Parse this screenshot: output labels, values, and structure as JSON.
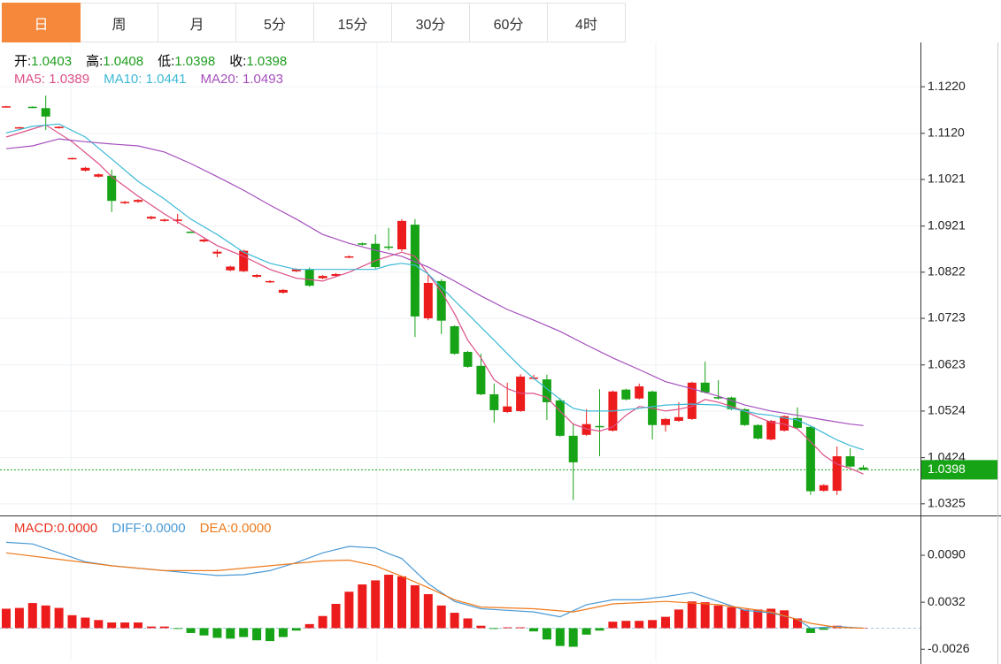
{
  "tabs": [
    "日",
    "周",
    "月",
    "5分",
    "15分",
    "30分",
    "60分",
    "4时"
  ],
  "active_tab": 0,
  "chart_data": [
    {
      "type": "candlestick",
      "info": [
        {
          "label": "开:",
          "value": 1.0403
        },
        {
          "label": "高:",
          "value": 1.0408
        },
        {
          "label": "低:",
          "value": 1.0398
        },
        {
          "label": "收:",
          "value": 1.0398
        }
      ],
      "info_color": "#1e9d1e",
      "ylim": [
        1.03,
        1.1315
      ],
      "yticks": [
        1.0325,
        1.0424,
        1.0524,
        1.0623,
        1.0723,
        1.0822,
        1.0921,
        1.1021,
        {
          "value": 1.112,
          "label": "1.1120"
        },
        {
          "value": 1.122,
          "label": "1.1220"
        }
      ],
      "grid": true,
      "up_color": "#ec1c1c",
      "down_color": "#16a316",
      "candles": {
        "open": [
          1.1177,
          1.1132,
          1.1177,
          1.1174,
          1.1131,
          1.1065,
          1.104,
          1.1027,
          1.1029,
          1.097,
          1.0973,
          1.0937,
          1.0932,
          1.0932,
          1.0909,
          1.0888,
          1.0862,
          1.0826,
          1.0824,
          1.0812,
          1.0801,
          1.0778,
          1.0824,
          1.0828,
          1.0809,
          1.0814,
          1.0854,
          1.0884,
          1.0883,
          1.0877,
          1.0871,
          1.0924,
          1.0723,
          1.0803,
          1.0706,
          1.0651,
          1.0621,
          1.056,
          1.0522,
          1.0524,
          1.0594,
          1.0592,
          1.0547,
          1.0471,
          1.0473,
          1.0492,
          1.0482,
          1.057,
          1.0551,
          1.0566,
          1.0494,
          1.0503,
          1.0507,
          1.0585,
          1.0554,
          1.0553,
          1.0528,
          1.0494,
          1.0463,
          1.0482,
          1.0509,
          1.049,
          1.0353,
          1.0353,
          1.0427,
          1.0403
        ],
        "high": [
          1.1179,
          1.1134,
          1.1178,
          1.1201,
          1.1135,
          1.1068,
          1.1048,
          1.1034,
          1.1042,
          1.0975,
          1.0979,
          1.0943,
          1.0937,
          1.0947,
          1.091,
          1.0894,
          1.0871,
          1.0836,
          1.087,
          1.0818,
          1.0805,
          1.0786,
          1.083,
          1.0832,
          1.0816,
          1.082,
          1.0858,
          1.0886,
          1.0903,
          1.0917,
          1.0936,
          1.0936,
          1.0818,
          1.0807,
          1.0708,
          1.0653,
          1.0647,
          1.0583,
          1.0585,
          1.0603,
          1.0602,
          1.0602,
          1.0552,
          1.0498,
          1.0528,
          1.0571,
          1.0568,
          1.0572,
          1.0583,
          1.0568,
          1.0509,
          1.0543,
          1.0587,
          1.063,
          1.059,
          1.0555,
          1.053,
          1.0496,
          1.0505,
          1.0515,
          1.0532,
          1.0492,
          1.0367,
          1.0448,
          1.0444,
          1.0408
        ],
        "low": [
          1.1176,
          1.1131,
          1.1174,
          1.1127,
          1.113,
          1.1064,
          1.1038,
          1.1025,
          1.0951,
          1.0968,
          1.0971,
          1.0935,
          1.093,
          1.0926,
          1.0906,
          1.0886,
          1.0854,
          1.0824,
          1.0822,
          1.081,
          1.0799,
          1.0776,
          1.0822,
          1.0791,
          1.0807,
          1.0812,
          1.0852,
          1.0879,
          1.083,
          1.0869,
          1.0867,
          1.0683,
          1.0719,
          1.0689,
          1.0645,
          1.0617,
          1.0558,
          1.0499,
          1.052,
          1.0522,
          1.0592,
          1.0505,
          1.0469,
          1.0333,
          1.0471,
          1.0427,
          1.048,
          1.0547,
          1.0549,
          1.0463,
          1.048,
          1.0501,
          1.0505,
          1.0562,
          1.0549,
          1.0526,
          1.0492,
          1.0463,
          1.0461,
          1.048,
          1.0486,
          1.0344,
          1.0351,
          1.0344,
          1.0403,
          1.0398
        ],
        "close": [
          1.1178,
          1.1133,
          1.1175,
          1.1156,
          1.1134,
          1.1067,
          1.1046,
          1.1032,
          1.0975,
          1.0973,
          1.0977,
          1.0941,
          1.0935,
          1.0935,
          1.0907,
          1.0892,
          1.0866,
          1.0834,
          1.0868,
          1.0816,
          1.0803,
          1.0784,
          1.0828,
          1.0793,
          1.0814,
          1.0818,
          1.0856,
          1.0881,
          1.0833,
          1.0875,
          1.0932,
          1.0727,
          1.0799,
          1.0718,
          1.0647,
          1.0619,
          1.056,
          1.0526,
          1.0534,
          1.0598,
          1.0596,
          1.0543,
          1.0471,
          1.0414,
          1.0496,
          1.049,
          1.0566,
          1.0549,
          1.0577,
          1.0494,
          1.0507,
          1.0511,
          1.0585,
          1.0564,
          1.0551,
          1.0528,
          1.0494,
          1.0465,
          1.0503,
          1.0513,
          1.0488,
          1.0352,
          1.0365,
          1.0427,
          1.0405,
          1.0398
        ]
      },
      "series": [
        {
          "name": "MA5:",
          "color": "#dc4f88",
          "value": 1.0389,
          "x": [
            0,
            3,
            5,
            7,
            8,
            10,
            12,
            14,
            16,
            18,
            20,
            22,
            24,
            26,
            28,
            30,
            31,
            32,
            33,
            34,
            35,
            36,
            37,
            38,
            39,
            40,
            41,
            42,
            43,
            44,
            45,
            46,
            47,
            48,
            49,
            50,
            51,
            52,
            53,
            54,
            55,
            56,
            57,
            58,
            59,
            60,
            61,
            62,
            63,
            64,
            65
          ],
          "values": [
            1.1112,
            1.1138,
            1.1102,
            1.1055,
            1.1027,
            1.0985,
            1.0947,
            1.0913,
            1.0879,
            1.0856,
            1.0828,
            1.0809,
            1.0803,
            1.0822,
            1.0847,
            1.0865,
            1.0856,
            1.0818,
            1.078,
            1.0733,
            1.0676,
            1.0638,
            1.0591,
            1.0572,
            1.0562,
            1.0562,
            1.0553,
            1.0524,
            1.0496,
            1.0486,
            1.0481,
            1.049,
            1.0515,
            1.0534,
            1.053,
            1.0524,
            1.0528,
            1.0534,
            1.0549,
            1.0543,
            1.0534,
            1.0524,
            1.0511,
            1.05,
            1.0496,
            1.0486,
            1.0458,
            1.0429,
            1.041,
            1.0401,
            1.0389
          ]
        },
        {
          "name": "MA10:",
          "color": "#3cb9d6",
          "value": 1.0441,
          "x": [
            0,
            2,
            4,
            6,
            8,
            10,
            12,
            14,
            16,
            18,
            20,
            22,
            24,
            26,
            28,
            29,
            30,
            31,
            32,
            33,
            34,
            35,
            36,
            37,
            38,
            39,
            40,
            41,
            42,
            43,
            44,
            46,
            48,
            50,
            52,
            54,
            55,
            56,
            57,
            58,
            59,
            60,
            61,
            62,
            63,
            64,
            65
          ],
          "values": [
            1.1121,
            1.1135,
            1.114,
            1.1112,
            1.1065,
            1.1017,
            1.0979,
            1.0936,
            1.0903,
            1.0865,
            1.0841,
            1.0828,
            1.0828,
            1.0828,
            1.0828,
            1.0837,
            1.0841,
            1.0837,
            1.0818,
            1.079,
            1.0761,
            1.0733,
            1.0704,
            1.0676,
            1.0647,
            1.0619,
            1.0594,
            1.0572,
            1.0549,
            1.053,
            1.0524,
            1.0524,
            1.053,
            1.0537,
            1.0539,
            1.0537,
            1.053,
            1.0524,
            1.0518,
            1.0515,
            1.0509,
            1.0505,
            1.0492,
            1.0477,
            1.0462,
            1.045,
            1.0441
          ]
        },
        {
          "name": "MA20:",
          "color": "#a54fbd",
          "value": 1.0493,
          "x": [
            0,
            2,
            4,
            6,
            8,
            10,
            12,
            14,
            16,
            18,
            20,
            22,
            24,
            26,
            28,
            30,
            32,
            34,
            36,
            38,
            40,
            42,
            44,
            46,
            48,
            50,
            52,
            54,
            56,
            58,
            60,
            62,
            64,
            65
          ],
          "values": [
            1.1087,
            1.1093,
            1.1108,
            1.1102,
            1.1097,
            1.1093,
            1.108,
            1.1055,
            1.1027,
            1.0998,
            1.0966,
            1.0936,
            1.0903,
            1.0884,
            1.0869,
            1.0856,
            1.0833,
            1.0803,
            1.0771,
            1.0742,
            1.0719,
            1.0695,
            1.0666,
            1.0638,
            1.0613,
            1.0587,
            1.0572,
            1.0556,
            1.0537,
            1.0524,
            1.0515,
            1.0505,
            1.0496,
            1.0493
          ]
        }
      ],
      "last_price": 1.0398,
      "last_color": "#16a316"
    },
    {
      "type": "macd",
      "info": [
        {
          "label": "MACD:",
          "value": 0,
          "value_label": "0.0000",
          "color": "#e8311e"
        },
        {
          "label": "DIFF:",
          "value": 0,
          "value_label": "0.0000",
          "color": "#4a9ad6"
        },
        {
          "label": "DEA:",
          "value": 0,
          "value_label": "0.0000",
          "color": "#ee7a1c"
        }
      ],
      "ylim": [
        -0.0041,
        0.0137
      ],
      "yticks": [
        {
          "value": 0.009,
          "label": "0.0090"
        },
        0.0032,
        -0.0026
      ],
      "up_color": "#ec1c1c",
      "down_color": "#16a316",
      "values": [
        0.0024,
        0.0025,
        0.0031,
        0.0028,
        0.0025,
        0.0016,
        0.0013,
        0.001,
        0.0007,
        0.0007,
        0.0007,
        0.0002,
        0.0002,
        -0.0001,
        -0.0006,
        -0.0009,
        -0.0012,
        -0.0013,
        -0.0011,
        -0.0015,
        -0.0016,
        -0.0011,
        -0.0003,
        0.0005,
        0.0015,
        0.003,
        0.0045,
        0.0054,
        0.0059,
        0.0066,
        0.0064,
        0.0053,
        0.0042,
        0.0028,
        0.0019,
        0.0012,
        0.0003,
        -0.0001,
        0.0001,
        0.0001,
        -0.0004,
        -0.0014,
        -0.0022,
        -0.0023,
        -0.0008,
        -0.0003,
        0.0008,
        0.0009,
        0.0009,
        0.001,
        0.0014,
        0.0023,
        0.0033,
        0.0032,
        0.0028,
        0.0026,
        0.0023,
        0.0023,
        0.0024,
        0.0022,
        0.0012,
        -0.0006,
        -0.0002,
        0.0003,
        0.0001,
        0
      ],
      "series": [
        {
          "name": "DIFF",
          "color": "#4a9ad6",
          "x": [
            0,
            2,
            4,
            6,
            8,
            10,
            12,
            14,
            16,
            18,
            20,
            22,
            24,
            26,
            28,
            29,
            30,
            32,
            34,
            36,
            38,
            40,
            42,
            44,
            46,
            48,
            50,
            52,
            54,
            56,
            58,
            60,
            61,
            63,
            65
          ],
          "values": [
            0.0106,
            0.0104,
            0.0093,
            0.0082,
            0.0077,
            0.0074,
            0.0071,
            0.0068,
            0.0065,
            0.0066,
            0.0071,
            0.0081,
            0.0093,
            0.0101,
            0.0099,
            0.0092,
            0.0086,
            0.0055,
            0.0033,
            0.0024,
            0.0022,
            0.002,
            0.0014,
            0.0029,
            0.0035,
            0.0035,
            0.0039,
            0.0044,
            0.0033,
            0.0022,
            0.0019,
            0.0011,
            0,
            0.0002,
            0
          ]
        },
        {
          "name": "DEA",
          "color": "#ee7a1c",
          "x": [
            0,
            4,
            8,
            12,
            16,
            20,
            24,
            26,
            28,
            30,
            32,
            34,
            36,
            40,
            43,
            46,
            50,
            54,
            58,
            61,
            63,
            65
          ],
          "values": [
            0.0093,
            0.0085,
            0.0077,
            0.0071,
            0.0071,
            0.0077,
            0.0083,
            0.0084,
            0.0077,
            0.0064,
            0.005,
            0.0035,
            0.0026,
            0.0024,
            0.002,
            0.003,
            0.0033,
            0.0029,
            0.002,
            0.0006,
            0.0001,
            0
          ]
        }
      ]
    }
  ]
}
